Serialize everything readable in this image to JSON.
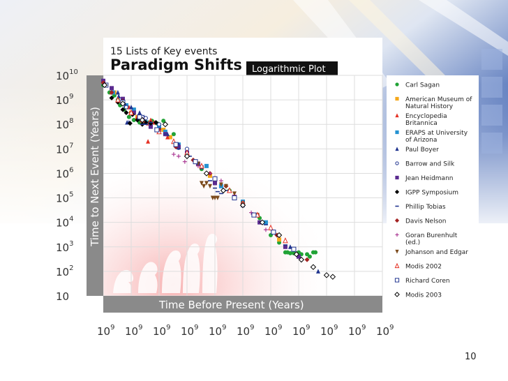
{
  "chart_data": {
    "type": "scatter",
    "supertitle": "15 Lists of Key events",
    "title": "Paradigm Shifts",
    "badge": "Logarithmic Plot",
    "xlabel": "Time Before Present (Years)",
    "ylabel": "Time to Next Event (Years)",
    "x_scale": "log",
    "y_scale": "log",
    "xlim": [
      1,
      10000000000
    ],
    "ylim": [
      10,
      10000000000
    ],
    "grid": true,
    "legend_position": "right",
    "x_tick_labels": [
      {
        "base": "10",
        "exp": "9"
      },
      {
        "base": "10",
        "exp": "9"
      },
      {
        "base": "10",
        "exp": "9"
      },
      {
        "base": "10",
        "exp": "9"
      },
      {
        "base": "10",
        "exp": "9"
      },
      {
        "base": "10",
        "exp": "9"
      },
      {
        "base": "10",
        "exp": "9"
      },
      {
        "base": "10",
        "exp": "9"
      },
      {
        "base": "10",
        "exp": "9"
      },
      {
        "base": "10",
        "exp": "9"
      },
      {
        "base": "10",
        "exp": "9"
      }
    ],
    "y_tick_labels": [
      {
        "base": "10",
        "exp": "10"
      },
      {
        "base": "10",
        "exp": "9"
      },
      {
        "base": "10",
        "exp": "8"
      },
      {
        "base": "10",
        "exp": "7"
      },
      {
        "base": "10",
        "exp": "6"
      },
      {
        "base": "10",
        "exp": "5"
      },
      {
        "base": "10",
        "exp": "4"
      },
      {
        "base": "10",
        "exp": "3"
      },
      {
        "base": "10",
        "exp": "2"
      },
      {
        "base": "10",
        "exp": ""
      }
    ],
    "series": [
      {
        "name": "Carl Sagan",
        "marker": "circle",
        "color": "#21a336",
        "points": [
          [
            14000000000.0,
            7000000000.0
          ],
          [
            10000000000.0,
            4000000000.0
          ],
          [
            6000000000.0,
            2000000000.0
          ],
          [
            4000000000.0,
            1500000000.0
          ],
          [
            3000000000.0,
            1000000000.0
          ],
          [
            2500000000.0,
            600000000.0
          ],
          [
            1800000000.0,
            400000000.0
          ],
          [
            1200000000.0,
            200000000.0
          ],
          [
            800000000.0,
            150000000.0
          ],
          [
            500000000.0,
            120000000.0
          ],
          [
            320000000.0,
            130000000.0
          ],
          [
            250000000.0,
            120000000.0
          ],
          [
            180000000.0,
            140000000.0
          ],
          [
            120000000.0,
            110000000.0
          ],
          [
            100000000.0,
            100000000.0
          ],
          [
            70000000.0,
            140000000.0
          ],
          [
            30000000.0,
            40000000.0
          ],
          [
            3000000.0,
            1500000.0
          ],
          [
            300000.0,
            200000.0
          ],
          [
            100000.0,
            60000.0
          ],
          [
            25000.0,
            15000.0
          ],
          [
            10000.0,
            3000.0
          ],
          [
            5000.0,
            1500.0
          ],
          [
            3000.0,
            600.0
          ],
          [
            2500.0,
            600.0
          ],
          [
            2000.0,
            550.0
          ],
          [
            1500.0,
            550.0
          ],
          [
            1200.0,
            500.0
          ],
          [
            1000.0,
            600.0
          ],
          [
            800.0,
            500.0
          ],
          [
            500.0,
            500.0
          ],
          [
            400.0,
            400.0
          ],
          [
            300.0,
            600.0
          ],
          [
            250.0,
            600.0
          ]
        ]
      },
      {
        "name": "American Museum of Natural History",
        "marker": "square",
        "color": "#f5a81c",
        "points": [
          [
            15000000000.0,
            5000000000.0
          ],
          [
            4000000000.0,
            2000000000.0
          ],
          [
            2000000000.0,
            800000000.0
          ],
          [
            1000000000.0,
            300000000.0
          ],
          [
            600000000.0,
            200000000.0
          ],
          [
            400000000.0,
            150000000.0
          ],
          [
            200000000.0,
            100000000.0
          ],
          [
            100000000.0,
            80000000.0
          ],
          [
            70000000.0,
            60000000.0
          ],
          [
            40000000.0,
            30000000.0
          ],
          [
            1500000.0,
            800000.0
          ],
          [
            40000.0,
            20000.0
          ],
          [
            5000.0,
            2000.0
          ]
        ]
      },
      {
        "name": "Encyclopedia Britannica",
        "marker": "triangle",
        "color": "#e53023",
        "points": [
          [
            12000000000.0,
            6000000000.0
          ],
          [
            5000000000.0,
            2000000000.0
          ],
          [
            1200000000.0,
            500000000.0
          ],
          [
            600000000.0,
            200000000.0
          ],
          [
            250000000.0,
            110000000.0
          ],
          [
            200000000.0,
            150000000.0
          ],
          [
            150000000.0,
            120000000.0
          ],
          [
            50000000.0,
            30000000.0
          ],
          [
            250000000.0,
            20000000.0
          ],
          [
            100000000.0,
            70000000.0
          ]
        ]
      },
      {
        "name": "ERAPS at University of Arizona",
        "marker": "square",
        "color": "#2592d1",
        "points": [
          [
            13000000000.0,
            8000000000.0
          ],
          [
            4500000000.0,
            2000000000.0
          ],
          [
            1500000000.0,
            600000000.0
          ],
          [
            800000000.0,
            400000000.0
          ],
          [
            300000000.0,
            120000000.0
          ],
          [
            200000000.0,
            100000000.0
          ],
          [
            100000000.0,
            80000000.0
          ],
          [
            60000000.0,
            50000000.0
          ],
          [
            20000000.0,
            15000000.0
          ],
          [
            2000000.0,
            2000000.0
          ],
          [
            600000.0,
            300000.0
          ],
          [
            100000.0,
            70000.0
          ],
          [
            15000.0,
            10000.0
          ]
        ]
      },
      {
        "name": "Paul Boyer",
        "marker": "triangle",
        "color": "#20348f",
        "points": [
          [
            12000000000.0,
            8000000000.0
          ],
          [
            3000000000.0,
            2000000000.0
          ],
          [
            2800000000.0,
            1400000000.0
          ],
          [
            1600000000.0,
            600000000.0
          ],
          [
            1400000000.0,
            120000000.0
          ],
          [
            1200000000.0,
            120000000.0
          ],
          [
            1000000000.0,
            500000000.0
          ],
          [
            500000000.0,
            300000000.0
          ],
          [
            350000000.0,
            200000000.0
          ],
          [
            200000000.0,
            100000000.0
          ],
          [
            100000000.0,
            60000000.0
          ],
          [
            50000000.0,
            40000000.0
          ],
          [
            20000000.0,
            15000000.0
          ],
          [
            3000000.0,
            1800000.0
          ],
          [
            100000.0,
            50000.0
          ],
          [
            2000.0,
            1000.0
          ],
          [
            200.0,
            100.0
          ]
        ]
      },
      {
        "name": "Barrow and Silk",
        "marker": "circle-open",
        "color": "#20348f",
        "points": [
          [
            20000000000.0,
            1600000000.0
          ],
          [
            18000000000.0,
            1200000000.0
          ],
          [
            1500000000.0,
            500000000.0
          ],
          [
            400000000.0,
            200000000.0
          ],
          [
            300000000.0,
            180000000.0
          ],
          [
            100000000.0,
            100000000.0
          ],
          [
            20000000.0,
            11000000.0
          ],
          [
            10000000.0,
            10000000.0
          ],
          [
            5000000.0,
            3000000.0
          ],
          [
            1000000.0,
            600000.0
          ]
        ]
      },
      {
        "name": "Jean Heidmann",
        "marker": "square",
        "color": "#5a2a8f",
        "points": [
          [
            10000000000.0,
            6000000000.0
          ],
          [
            5000000000.0,
            3000000000.0
          ],
          [
            2000000000.0,
            1100000000.0
          ],
          [
            800000000.0,
            300000000.0
          ],
          [
            400000000.0,
            150000000.0
          ],
          [
            200000000.0,
            80000000.0
          ],
          [
            60000000.0,
            40000000.0
          ],
          [
            20000000.0,
            12000000.0
          ],
          [
            10000000.0,
            7000000.0
          ],
          [
            4000000.0,
            2500000.0
          ],
          [
            1000000.0,
            400000.0
          ],
          [
            200000.0,
            100000.0
          ],
          [
            25000.0,
            10000.0
          ],
          [
            3000.0,
            1000.0
          ],
          [
            1000.0,
            400.0
          ]
        ]
      },
      {
        "name": "IGPP Symposium",
        "marker": "diamond",
        "color": "#000000",
        "points": [
          [
            12000000000.0,
            4000000000.0
          ],
          [
            5000000000.0,
            1200000000.0
          ],
          [
            3000000000.0,
            800000000.0
          ],
          [
            2000000000.0,
            400000000.0
          ],
          [
            1500000000.0,
            300000000.0
          ],
          [
            1100000000.0,
            110000000.0
          ],
          [
            900000000.0,
            250000000.0
          ],
          [
            600000000.0,
            150000000.0
          ],
          [
            400000000.0,
            100000000.0
          ],
          [
            300000000.0,
            120000000.0
          ],
          [
            200000000.0,
            110000000.0
          ],
          [
            130000000.0,
            120000000.0
          ]
        ]
      },
      {
        "name": "Phillip Tobias",
        "marker": "dash",
        "color": "#20348f",
        "points": [
          [
            400000000.0,
            100000000.0
          ],
          [
            300000000.0,
            100000000.0
          ],
          [
            200000000.0,
            120000000.0
          ],
          [
            100000000.0,
            70000000.0
          ],
          [
            60000000.0,
            40000000.0
          ],
          [
            20000000.0,
            10000000.0
          ],
          [
            8000000.0,
            5000000.0
          ],
          [
            3000000.0,
            2000000.0
          ],
          [
            1500000.0,
            500000.0
          ],
          [
            1000000.0,
            250000.0
          ],
          [
            800000.0,
            180000.0
          ],
          [
            600000.0,
            150000.0
          ],
          [
            400000.0,
            200000.0
          ],
          [
            100000.0,
            50000.0
          ],
          [
            15000.0,
            8000.0
          ],
          [
            3000.0,
            1200.0
          ]
        ]
      },
      {
        "name": "Davis Nelson",
        "marker": "diamond",
        "color": "#a32222",
        "points": [
          [
            15000000000.0,
            7000000000.0
          ],
          [
            10000000000.0,
            5000000000.0
          ],
          [
            5000000000.0,
            2000000000.0
          ],
          [
            2000000000.0,
            900000000.0
          ],
          [
            1000000000.0,
            300000000.0
          ],
          [
            400000000.0,
            150000000.0
          ],
          [
            100000000.0,
            60000000.0
          ],
          [
            25000000.0,
            12000000.0
          ],
          [
            6000000.0,
            3500000.0
          ],
          [
            1500000.0,
            1000000.0
          ],
          [
            400000.0,
            300000.0
          ],
          [
            100000.0,
            60000.0
          ],
          [
            30000.0,
            20000.0
          ],
          [
            6000.0,
            3000.0
          ],
          [
            1500.0,
            800.0
          ],
          [
            500.0,
            300.0
          ]
        ]
      },
      {
        "name": "Goran Burenhult (ed.)",
        "marker": "plus",
        "color": "#a62e8e",
        "points": [
          [
            30000000.0,
            6000000.0
          ],
          [
            20000000.0,
            5000000.0
          ],
          [
            12000000.0,
            3000000.0
          ],
          [
            4000000.0,
            2000000.0
          ],
          [
            1500000.0,
            1000000.0
          ],
          [
            600000.0,
            500000.0
          ],
          [
            200000.0,
            130000.0
          ],
          [
            50000.0,
            25000.0
          ],
          [
            15000.0,
            5000.0
          ]
        ]
      },
      {
        "name": "Johanson and Edgar",
        "marker": "triangle-down",
        "color": "#7b4a1c",
        "points": [
          [
            4000000.0,
            2500000.0
          ],
          [
            3000000.0,
            400000.0
          ],
          [
            2500000.0,
            300000.0
          ],
          [
            2000000.0,
            400000.0
          ],
          [
            1500000.0,
            300000.0
          ],
          [
            1200000.0,
            100000.0
          ],
          [
            1000000.0,
            100000.0
          ],
          [
            800000.0,
            100000.0
          ],
          [
            600000.0,
            350000.0
          ],
          [
            400000.0,
            300000.0
          ],
          [
            200000.0,
            150000.0
          ],
          [
            100000.0,
            60000.0
          ],
          [
            30000.0,
            20000.0
          ]
        ]
      },
      {
        "name": "Modis 2002",
        "marker": "triangle-open",
        "color": "#e53023",
        "points": [
          [
            3000000000.0,
            1000000000.0
          ],
          [
            1000000000.0,
            300000000.0
          ],
          [
            400000000.0,
            150000000.0
          ],
          [
            100000000.0,
            50000000.0
          ],
          [
            30000000.0,
            20000000.0
          ],
          [
            10000000.0,
            7000000.0
          ],
          [
            3000000.0,
            2000000.0
          ],
          [
            1000000.0,
            600000.0
          ],
          [
            300000.0,
            200000.0
          ],
          [
            100000.0,
            60000.0
          ],
          [
            30000.0,
            20000.0
          ],
          [
            10000.0,
            6000.0
          ],
          [
            3000.0,
            1800.0
          ]
        ]
      },
      {
        "name": "Richard Coren",
        "marker": "square-open",
        "color": "#20348f",
        "points": [
          [
            8000000000.0,
            4000000000.0
          ],
          [
            2000000000.0,
            800000000.0
          ],
          [
            500000000.0,
            200000000.0
          ],
          [
            120000000.0,
            60000000.0
          ],
          [
            25000000.0,
            15000000.0
          ],
          [
            5000000.0,
            3000000.0
          ],
          [
            1000000.0,
            600000.0
          ],
          [
            200000.0,
            100000.0
          ],
          [
            40000.0,
            20000.0
          ],
          [
            8000.0,
            4000.0
          ],
          [
            1500.0,
            800.0
          ]
        ]
      },
      {
        "name": "Modis 2003",
        "marker": "diamond-open",
        "color": "#000000",
        "points": [
          [
            9000000000.0,
            4000000000.0
          ],
          [
            2000000000.0,
            700000000.0
          ],
          [
            400000000.0,
            150000000.0
          ],
          [
            60000000.0,
            100000000.0
          ],
          [
            10000000.0,
            5000000.0
          ],
          [
            2000000.0,
            1000000.0
          ],
          [
            500000.0,
            200000.0
          ],
          [
            100000.0,
            50000.0
          ],
          [
            20000.0,
            10000.0
          ],
          [
            5000.0,
            3000.0
          ],
          [
            1200.0,
            500.0
          ],
          [
            800.0,
            300.0
          ],
          [
            300.0,
            150.0
          ],
          [
            100.0,
            70.0
          ],
          [
            60.0,
            60.0
          ]
        ]
      }
    ]
  },
  "page_number": "10"
}
